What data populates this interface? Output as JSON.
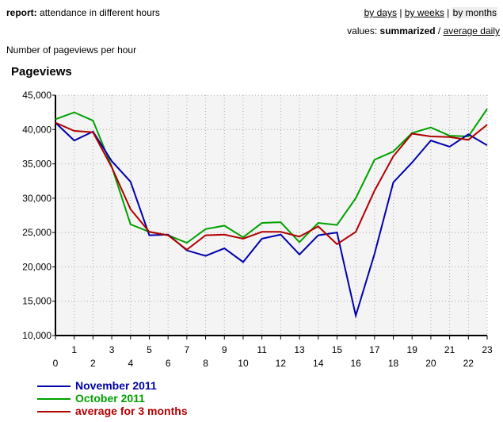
{
  "header": {
    "report_label": "report:",
    "report_title": "attendance in different hours",
    "nav": [
      "by days",
      "by weeks",
      "by months"
    ],
    "nav_sep": "|",
    "values_label": "values:",
    "values_selected": "summarized",
    "values_sep": "/",
    "values_other": "average daily"
  },
  "subtitle": "Number of pageviews per hour",
  "chart_data": {
    "type": "line",
    "title": "Pageviews",
    "xlabel": "",
    "ylabel": "",
    "x": [
      0,
      1,
      2,
      3,
      4,
      5,
      6,
      7,
      8,
      9,
      10,
      11,
      12,
      13,
      14,
      15,
      16,
      17,
      18,
      19,
      20,
      21,
      22,
      23
    ],
    "ylim": [
      10000,
      45000
    ],
    "yticks": [
      "10,000",
      "15,000",
      "20,000",
      "25,000",
      "30,000",
      "35,000",
      "40,000",
      "45,000"
    ],
    "ytick_values": [
      10000,
      15000,
      20000,
      25000,
      30000,
      35000,
      40000,
      45000
    ],
    "grid": true,
    "legend_position": "bottom-left",
    "series": [
      {
        "name": "November 2011",
        "color": "#0000aa",
        "values": [
          41000,
          38400,
          39700,
          35400,
          32400,
          24600,
          24700,
          22400,
          21600,
          22700,
          20700,
          24100,
          24700,
          21800,
          24600,
          25000,
          12900,
          21900,
          32300,
          35200,
          38400,
          37500,
          39300,
          37700
        ]
      },
      {
        "name": "October 2011",
        "color": "#00a000",
        "values": [
          41500,
          42500,
          41300,
          34600,
          26200,
          25100,
          24600,
          23500,
          25500,
          26000,
          24300,
          26400,
          26500,
          23600,
          26400,
          26100,
          30000,
          35600,
          36800,
          39500,
          40300,
          39100,
          39000,
          43000
        ]
      },
      {
        "name": "average for 3 months",
        "color": "#b00000",
        "values": [
          41000,
          39800,
          39600,
          34500,
          28400,
          25100,
          24600,
          22500,
          24600,
          24700,
          24100,
          25100,
          25100,
          24400,
          25900,
          23300,
          25100,
          31100,
          36100,
          39400,
          39000,
          38900,
          38500,
          40700
        ]
      }
    ]
  }
}
